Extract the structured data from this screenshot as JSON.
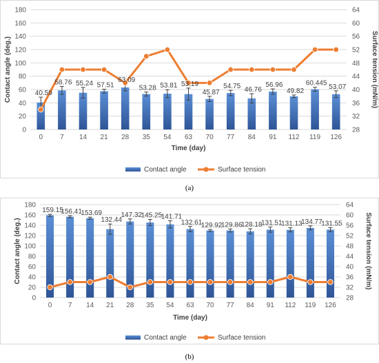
{
  "chart_data": [
    {
      "type": "bar",
      "caption": "(a)",
      "categories": [
        "0",
        "7",
        "14",
        "21",
        "28",
        "35",
        "54",
        "63",
        "70",
        "77",
        "84",
        "91",
        "112",
        "119",
        "126"
      ],
      "xlabel": "Time (day)",
      "ylabel": "Contact angle (deg.)",
      "y2label": "Surface tension (mN/m)",
      "ylim": [
        0,
        180
      ],
      "yticks": [
        0,
        20,
        40,
        60,
        80,
        100,
        120,
        140,
        160,
        180
      ],
      "y2lim": [
        28,
        64
      ],
      "y2ticks": [
        28,
        32,
        36,
        40,
        44,
        48,
        52,
        56,
        60,
        64
      ],
      "grid": true,
      "legend_position": "bottom",
      "series": [
        {
          "name": "Contact angle",
          "kind": "bar",
          "axis": "left",
          "values": [
            40.59,
            58.76,
            55.24,
            57.51,
            63.09,
            53.28,
            53.81,
            53.19,
            45.87,
            54.75,
            46.76,
            56.96,
            49.82,
            60.445,
            53.07
          ],
          "errors": [
            8,
            6,
            8,
            3,
            5,
            3,
            6,
            9,
            4,
            4,
            7,
            4,
            2,
            3,
            5
          ],
          "labels": [
            "40.59",
            "58.76",
            "55.24",
            "57.51",
            "63.09",
            "53.28",
            "53.81",
            "53.19",
            "45.87",
            "54.75",
            "46.76",
            "56.96",
            "49.82",
            "60.445",
            "53.07"
          ]
        },
        {
          "name": "Surface tension",
          "kind": "line",
          "axis": "right",
          "values": [
            34,
            46,
            46,
            46,
            42,
            50,
            52,
            42,
            42,
            46,
            46,
            46,
            46,
            52,
            52
          ]
        }
      ]
    },
    {
      "type": "bar",
      "caption": "(b)",
      "categories": [
        "0",
        "7",
        "14",
        "21",
        "28",
        "35",
        "54",
        "63",
        "70",
        "77",
        "84",
        "91",
        "112",
        "119",
        "126"
      ],
      "xlabel": "Time (day)",
      "ylabel": "Contact angle (deg.)",
      "y2label": "Surface tension (mN/m)",
      "ylim": [
        0,
        180
      ],
      "yticks": [
        0,
        20,
        40,
        60,
        80,
        100,
        120,
        140,
        160,
        180
      ],
      "y2lim": [
        28,
        64
      ],
      "y2ticks": [
        28,
        32,
        36,
        40,
        44,
        48,
        52,
        56,
        60,
        64
      ],
      "grid": true,
      "legend_position": "bottom",
      "series": [
        {
          "name": "Contact angle",
          "kind": "bar",
          "axis": "left",
          "values": [
            159.15,
            156.41,
            153.69,
            132.44,
            147.32,
            145.25,
            141.71,
            132.61,
            129.92,
            129.86,
            128.18,
            131.51,
            131.13,
            134.77,
            131.55
          ],
          "errors": [
            2,
            2,
            2,
            10,
            5,
            6,
            7,
            5,
            2,
            3,
            5,
            5,
            4,
            4,
            4
          ],
          "labels": [
            "159.15",
            "156.41",
            "153.69",
            "132.44",
            "147.32",
            "145.25",
            "141.71",
            "132.61",
            "129.92",
            "129.86",
            "128.18",
            "131.51",
            "131.13",
            "134.77",
            "131.55"
          ]
        },
        {
          "name": "Surface tension",
          "kind": "line",
          "axis": "right",
          "values": [
            32,
            34,
            34,
            36,
            32,
            34,
            34,
            34,
            34,
            34,
            34,
            34,
            36,
            34,
            34
          ]
        }
      ]
    }
  ],
  "colors": {
    "bar_fill_top": "#5b8fd6",
    "bar_fill_bottom": "#2f5597",
    "line": "#ed7d31",
    "error": "#404040"
  },
  "icons": {
    "bar_legend": "blue-bar-swatch",
    "line_legend": "orange-line-marker"
  }
}
